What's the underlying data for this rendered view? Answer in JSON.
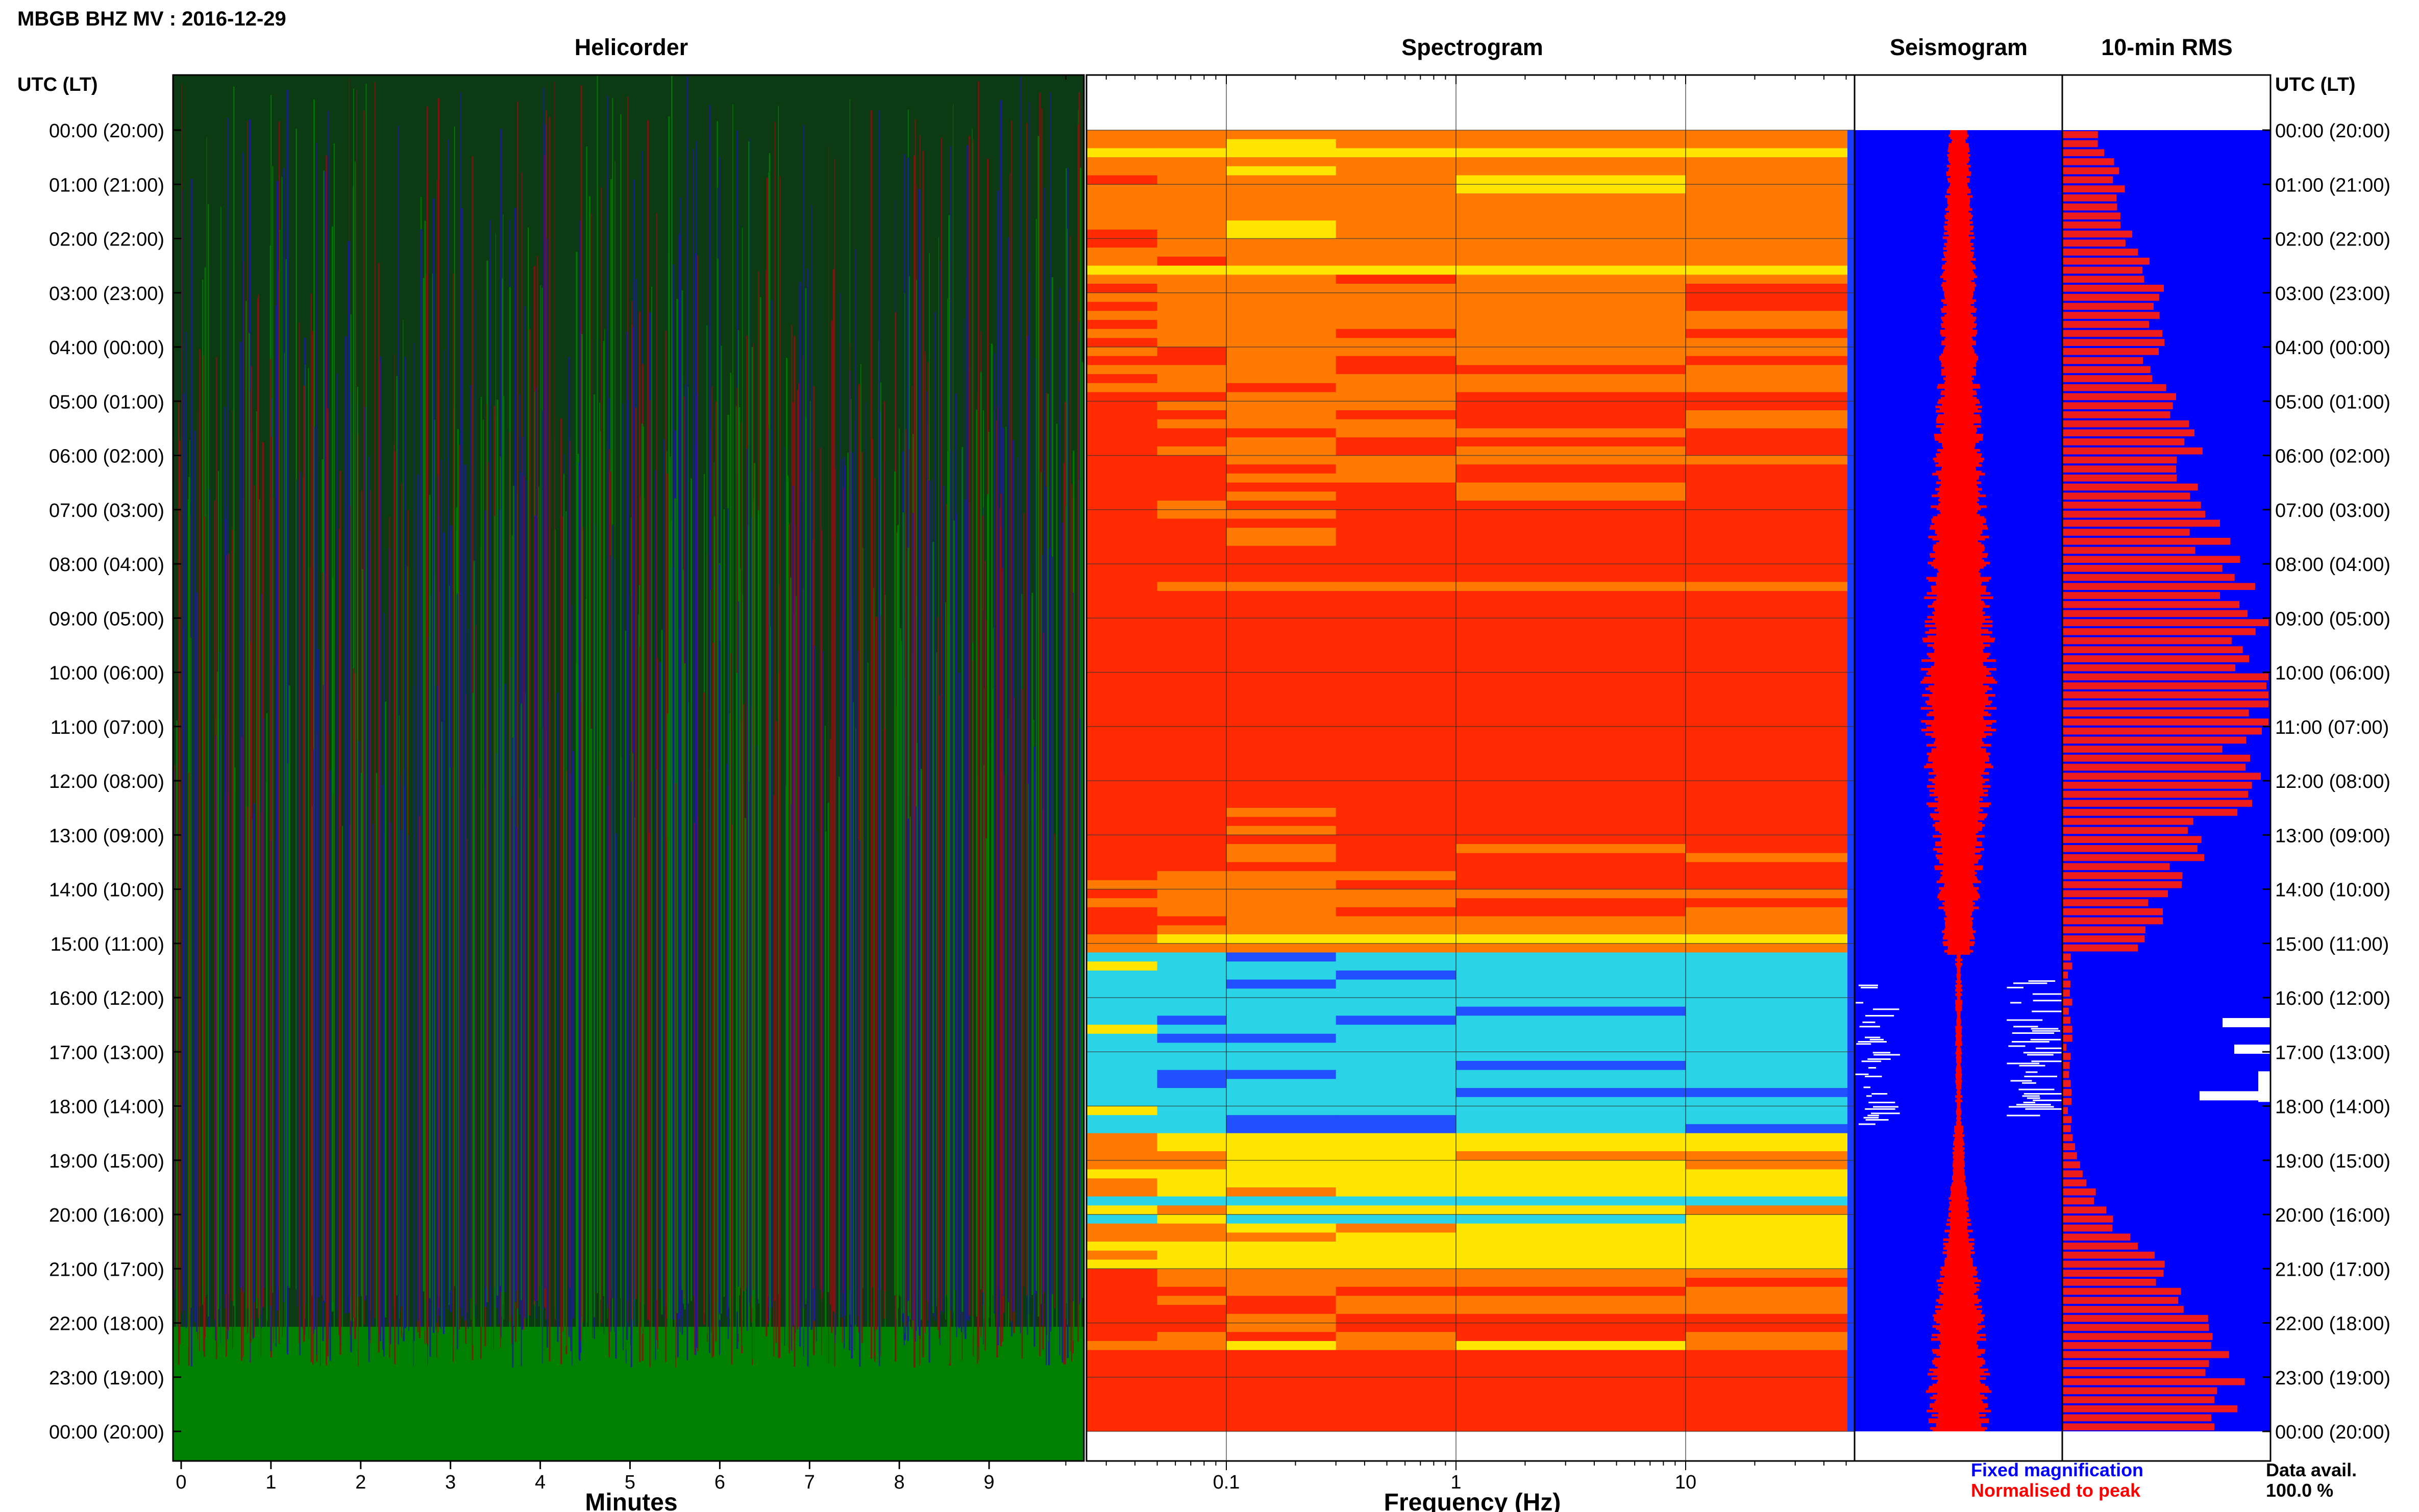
{
  "header": {
    "title": "MBGB BHZ MV : 2016-12-29"
  },
  "panels": {
    "helicorder": "Helicorder",
    "spectrogram": "Spectrogram",
    "seismogram": "Seismogram",
    "rms": "10-min RMS"
  },
  "time_axis_label": "UTC (LT)",
  "hour_labels": [
    "00:00 (20:00)",
    "01:00 (21:00)",
    "02:00 (22:00)",
    "03:00 (23:00)",
    "04:00 (00:00)",
    "05:00 (01:00)",
    "06:00 (02:00)",
    "07:00 (03:00)",
    "08:00 (04:00)",
    "09:00 (05:00)",
    "10:00 (06:00)",
    "11:00 (07:00)",
    "12:00 (08:00)",
    "13:00 (09:00)",
    "14:00 (10:00)",
    "15:00 (11:00)",
    "16:00 (12:00)",
    "17:00 (13:00)",
    "18:00 (14:00)",
    "19:00 (15:00)",
    "20:00 (16:00)",
    "21:00 (17:00)",
    "22:00 (18:00)",
    "23:00 (19:00)",
    "00:00 (20:00)"
  ],
  "legend": {
    "fixed": "Fixed magnification",
    "normalised": "Normalised to peak",
    "avail_label": "Data avail.",
    "avail_value": "100.0 %"
  },
  "colors": {
    "helicorder_green": "#008000",
    "helicorder_blue": "#1a1aa0",
    "helicorder_red": "#8a1010",
    "seismo_fixed": "#0000ff",
    "seismo_norm": "#ff0000",
    "rms_bar": "#ee1c1c",
    "rms_bg": "#0000ff",
    "spec_hot": "#ff2a00",
    "spec_orange": "#ff7a00",
    "spec_yellow": "#ffe600",
    "spec_cyan": "#2ad4e6",
    "spec_blue": "#2050ff"
  },
  "chart_data": [
    {
      "type": "line",
      "panel": "Helicorder",
      "xlabel": "Minutes",
      "xticks": [
        0,
        1,
        2,
        3,
        4,
        5,
        6,
        7,
        8,
        9
      ],
      "xlim": [
        0,
        10
      ],
      "rows_per_hour": 6
    },
    {
      "type": "heatmap",
      "panel": "Spectrogram",
      "xlabel": "Frequency (Hz)",
      "xscale": "log",
      "xlim": [
        0.02,
        50
      ],
      "xticks": [
        0.1,
        1,
        10
      ],
      "xtick_labels": [
        "0.1",
        "1",
        "10"
      ],
      "quiet_interval_utc": [
        "15:10",
        "18:20"
      ]
    },
    {
      "type": "area",
      "panel": "Seismogram",
      "series": [
        {
          "name": "Fixed magnification",
          "color": "#0000ff"
        },
        {
          "name": "Normalised to peak",
          "color": "#ff0000"
        }
      ]
    },
    {
      "type": "bar",
      "panel": "10-min RMS",
      "bins": 144,
      "ylim": [
        0,
        24
      ],
      "rms_hourly": [
        0.18,
        0.28,
        0.36,
        0.46,
        0.44,
        0.56,
        0.62,
        0.72,
        0.82,
        0.92,
        1.0,
        0.96,
        0.9,
        0.68,
        0.52,
        0.36,
        0.1,
        0.05,
        0.03,
        0.08,
        0.22,
        0.5,
        0.66,
        0.82,
        0.88
      ],
      "missing_data_hours": [
        16.0,
        17.5
      ]
    }
  ]
}
